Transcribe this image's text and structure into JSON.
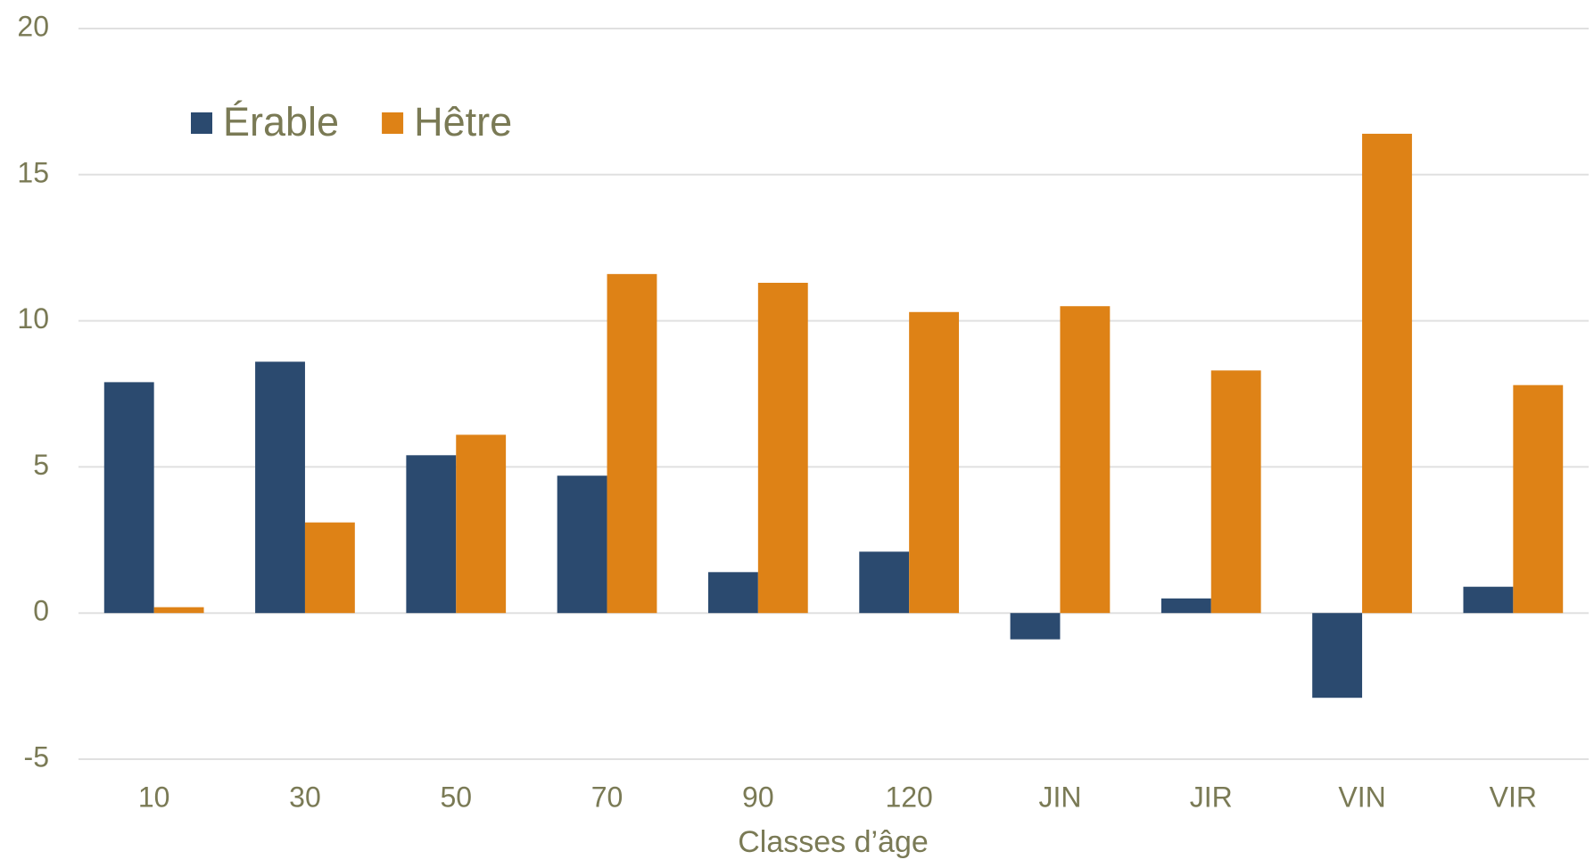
{
  "chart_data": {
    "type": "bar",
    "x_label": "Classes d’âge",
    "categories": [
      "10",
      "30",
      "50",
      "70",
      "90",
      "120",
      "JIN",
      "JIR",
      "VIN",
      "VIR"
    ],
    "series": [
      {
        "name": "Érable",
        "color": "#2b4a6f",
        "values": [
          7.9,
          8.6,
          5.4,
          4.7,
          1.4,
          2.1,
          -0.9,
          0.5,
          -2.9,
          0.9
        ]
      },
      {
        "name": "Hêtre",
        "color": "#de8216",
        "values": [
          0.2,
          3.1,
          6.1,
          11.6,
          11.3,
          10.3,
          10.5,
          8.3,
          16.4,
          7.8
        ]
      }
    ],
    "ylim": [
      -5,
      20
    ],
    "yticks": [
      -5,
      0,
      5,
      10,
      15,
      20
    ],
    "grid": true,
    "legend": "top-left"
  }
}
